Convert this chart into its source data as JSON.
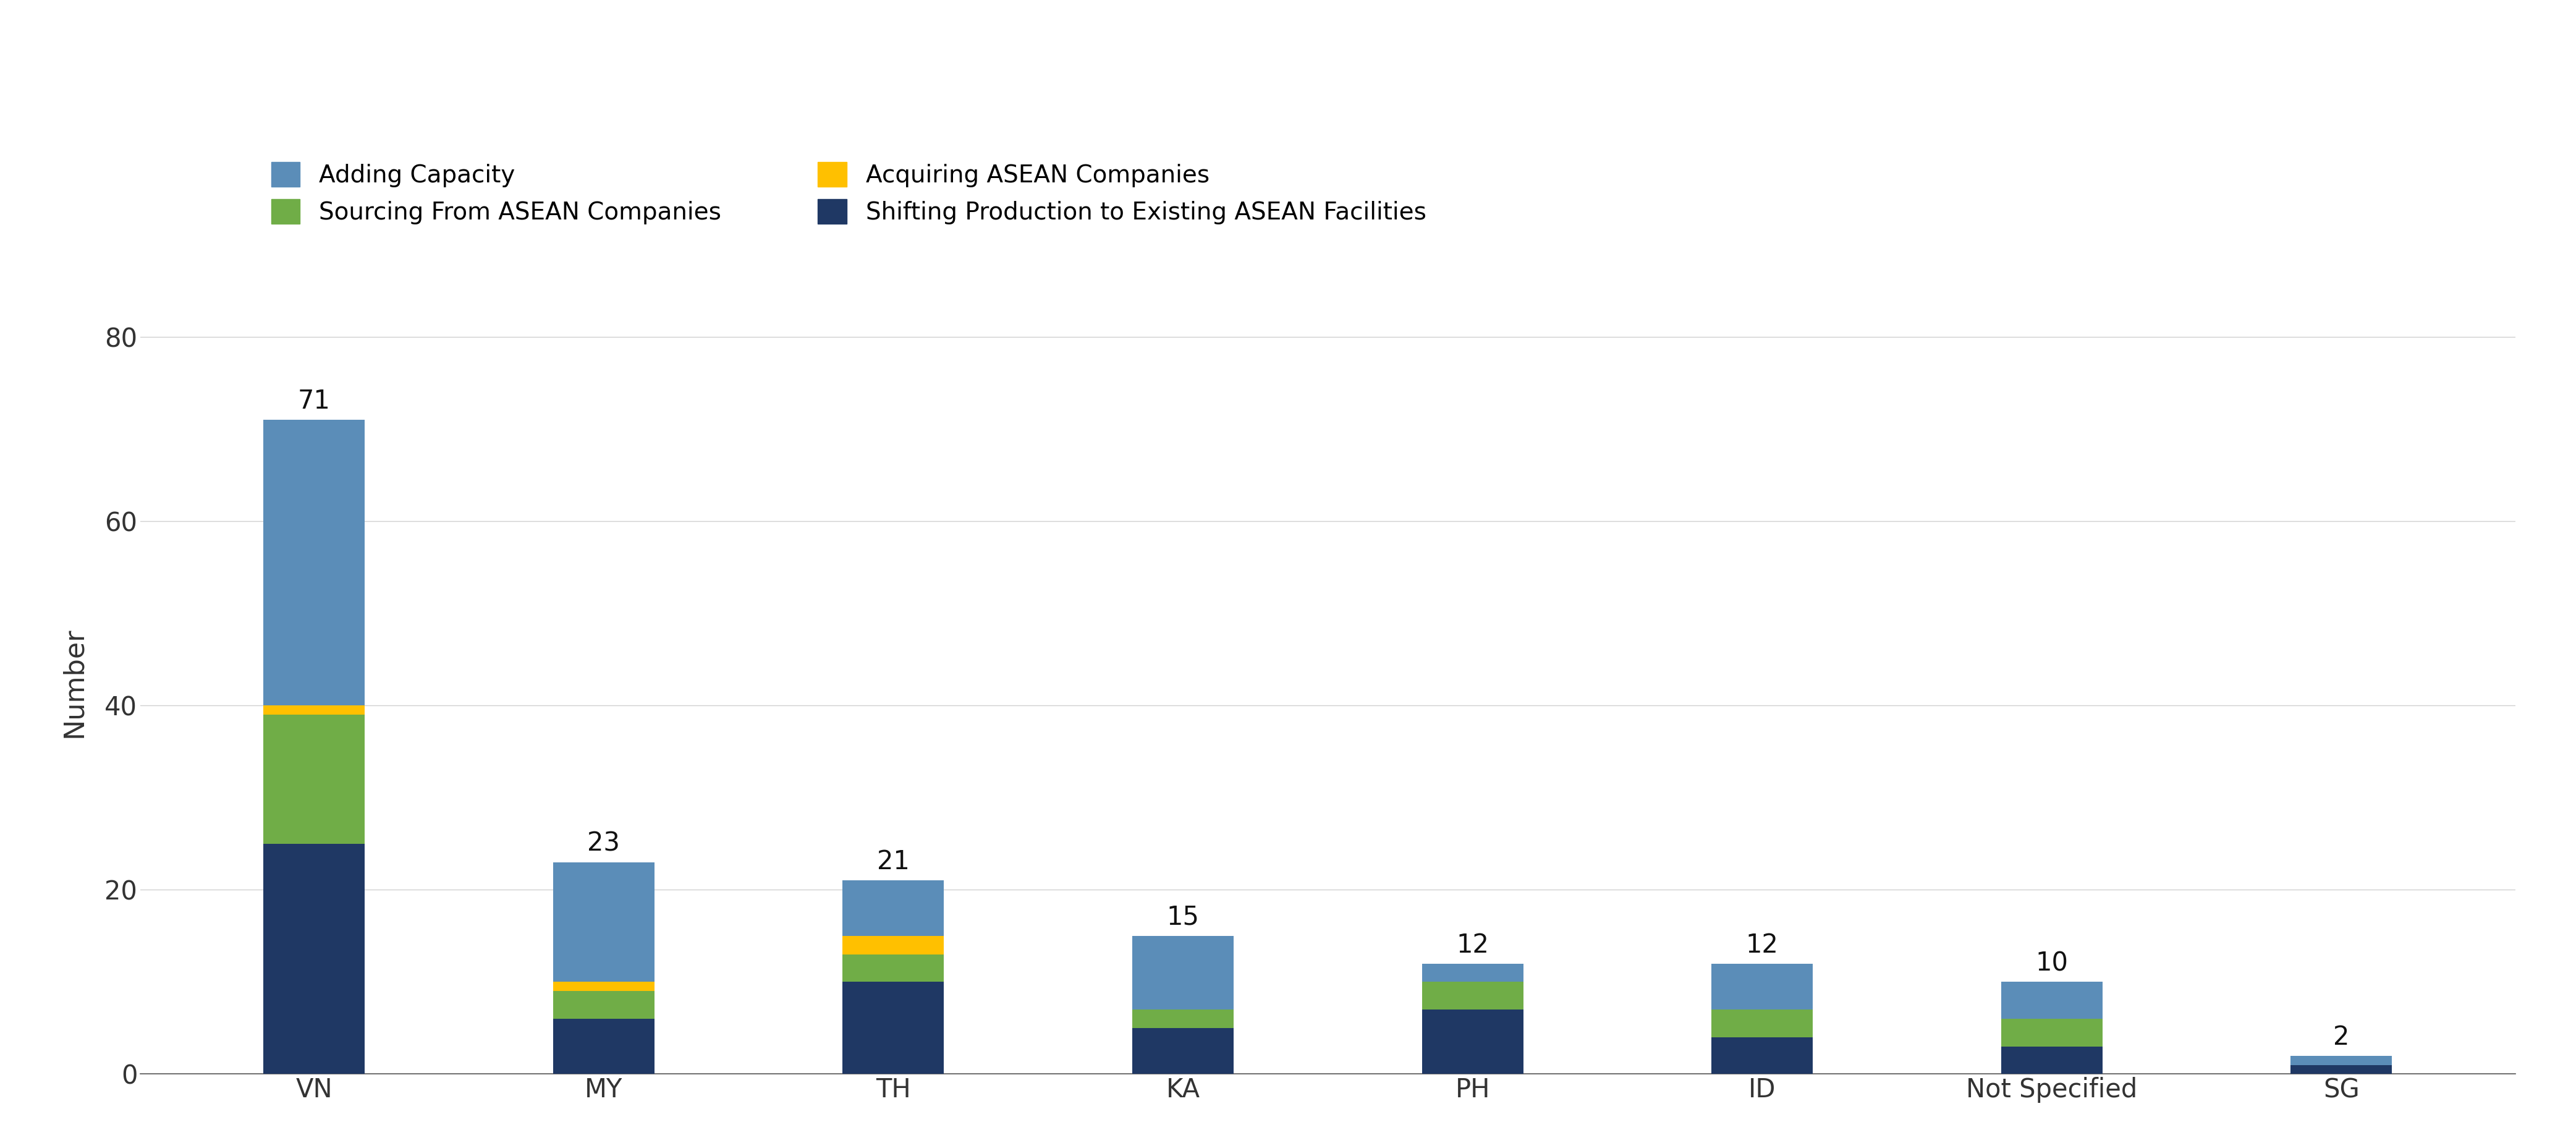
{
  "categories": [
    "VN",
    "MY",
    "TH",
    "KA",
    "PH",
    "ID",
    "Not Specified",
    "SG"
  ],
  "totals": [
    71,
    23,
    21,
    15,
    12,
    12,
    10,
    2
  ],
  "series": {
    "Shifting Production to Existing ASEAN Facilities": [
      25,
      6,
      10,
      5,
      7,
      4,
      3,
      1
    ],
    "Sourcing From ASEAN Companies": [
      14,
      3,
      3,
      2,
      3,
      3,
      3,
      0
    ],
    "Acquiring ASEAN Companies": [
      1,
      1,
      2,
      0,
      0,
      0,
      0,
      0
    ],
    "Adding Capacity": [
      31,
      13,
      6,
      8,
      2,
      5,
      4,
      1
    ]
  },
  "colors": {
    "Shifting Production to Existing ASEAN Facilities": "#1f3864",
    "Sourcing From ASEAN Companies": "#70ad47",
    "Acquiring ASEAN Companies": "#ffc000",
    "Adding Capacity": "#5b8db8"
  },
  "legend_order": [
    "Adding Capacity",
    "Sourcing From ASEAN Companies",
    "Acquiring ASEAN Companies",
    "Shifting Production to Existing ASEAN Facilities"
  ],
  "ylabel": "Number",
  "ylim": [
    0,
    85
  ],
  "yticks": [
    0,
    20,
    40,
    60,
    80
  ],
  "background_color": "#ffffff",
  "bar_width": 0.35,
  "label_fontsize": 32,
  "tick_fontsize": 30,
  "legend_fontsize": 28,
  "total_label_fontsize": 30
}
